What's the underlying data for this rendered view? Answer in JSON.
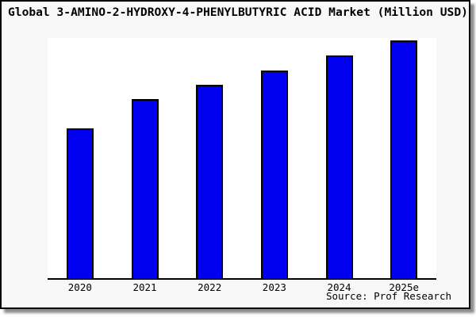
{
  "chart_data": {
    "type": "bar",
    "title": "Global 3-AMINO-2-HYDROXY-4-PHENYLBUTYRIC ACID Market (Million USD)",
    "categories": [
      "2020",
      "2021",
      "2022",
      "2023",
      "2024",
      "2025e"
    ],
    "values": [
      63.1,
      75.4,
      81.4,
      87.4,
      93.7,
      100
    ],
    "values_unit": "relative index (2025e = 100); no y-axis scale shown in image",
    "ylim": [
      0,
      101
    ],
    "xlabel": "",
    "ylabel": "",
    "grid": false,
    "legend": false,
    "bar_color": "#0000ee",
    "bar_border_color": "#000000",
    "source": "Source: Prof Research"
  },
  "colors": {
    "figure_background": "#f8f8f8",
    "plot_background": "#ffffff",
    "frame_border": "#000000",
    "text": "#000000"
  }
}
